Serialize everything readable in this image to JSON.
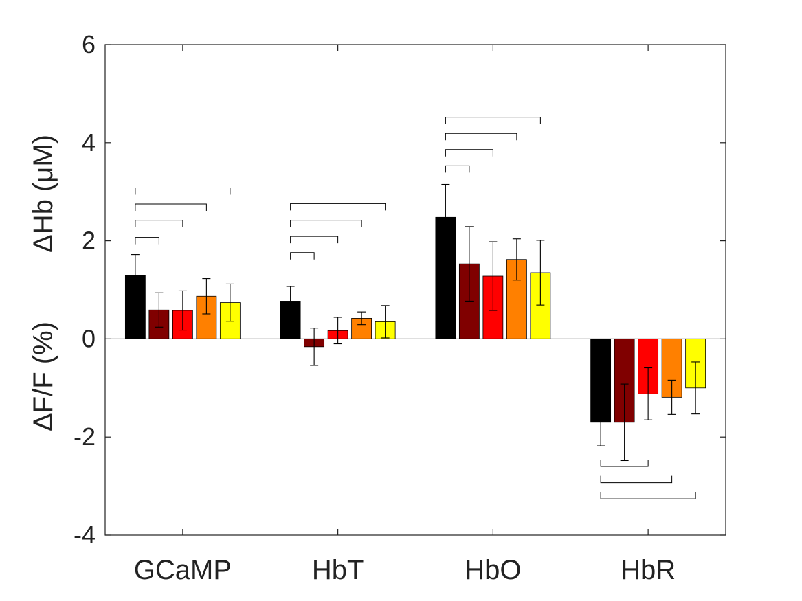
{
  "chart_data": {
    "type": "bar",
    "categories": [
      "GCaMP",
      "HbT",
      "HbO",
      "HbR"
    ],
    "ylabel_top": "ΔHb (μM)",
    "ylabel_bottom": "ΔF/F (%)",
    "ylim": [
      -4,
      6
    ],
    "yticks": [
      -4,
      -2,
      0,
      2,
      4,
      6
    ],
    "ytick_labels": [
      "-4",
      "-2",
      "0",
      "2",
      "4",
      "6"
    ],
    "grid": false,
    "series": [
      {
        "color": "#000000",
        "values": [
          1.3,
          0.77,
          2.48,
          -1.7
        ],
        "errors": [
          0.42,
          0.3,
          0.67,
          0.48
        ]
      },
      {
        "color": "#800000",
        "values": [
          0.59,
          -0.16,
          1.53,
          -1.7
        ],
        "errors": [
          0.35,
          0.38,
          0.76,
          0.78
        ]
      },
      {
        "color": "#ff0000",
        "values": [
          0.58,
          0.17,
          1.28,
          -1.12
        ],
        "errors": [
          0.4,
          0.27,
          0.7,
          0.53
        ]
      },
      {
        "color": "#ff8000",
        "values": [
          0.87,
          0.42,
          1.62,
          -1.19
        ],
        "errors": [
          0.36,
          0.13,
          0.42,
          0.35
        ]
      },
      {
        "color": "#ffff00",
        "values": [
          0.74,
          0.35,
          1.35,
          -1.0
        ],
        "errors": [
          0.38,
          0.33,
          0.66,
          0.53
        ]
      }
    ],
    "significance_brackets": [
      {
        "category": 0,
        "from": 0,
        "to": 1,
        "y": 2.07
      },
      {
        "category": 0,
        "from": 0,
        "to": 2,
        "y": 2.42
      },
      {
        "category": 0,
        "from": 0,
        "to": 3,
        "y": 2.75
      },
      {
        "category": 0,
        "from": 0,
        "to": 4,
        "y": 3.08
      },
      {
        "category": 1,
        "from": 0,
        "to": 1,
        "y": 1.76
      },
      {
        "category": 1,
        "from": 0,
        "to": 2,
        "y": 2.09
      },
      {
        "category": 1,
        "from": 0,
        "to": 3,
        "y": 2.42
      },
      {
        "category": 1,
        "from": 0,
        "to": 4,
        "y": 2.76
      },
      {
        "category": 2,
        "from": 0,
        "to": 1,
        "y": 3.53
      },
      {
        "category": 2,
        "from": 0,
        "to": 2,
        "y": 3.86
      },
      {
        "category": 2,
        "from": 0,
        "to": 3,
        "y": 4.19
      },
      {
        "category": 2,
        "from": 0,
        "to": 4,
        "y": 4.52
      },
      {
        "category": 3,
        "from": 0,
        "to": 2,
        "y": -2.6
      },
      {
        "category": 3,
        "from": 0,
        "to": 3,
        "y": -2.93
      },
      {
        "category": 3,
        "from": 0,
        "to": 4,
        "y": -3.26
      }
    ]
  }
}
